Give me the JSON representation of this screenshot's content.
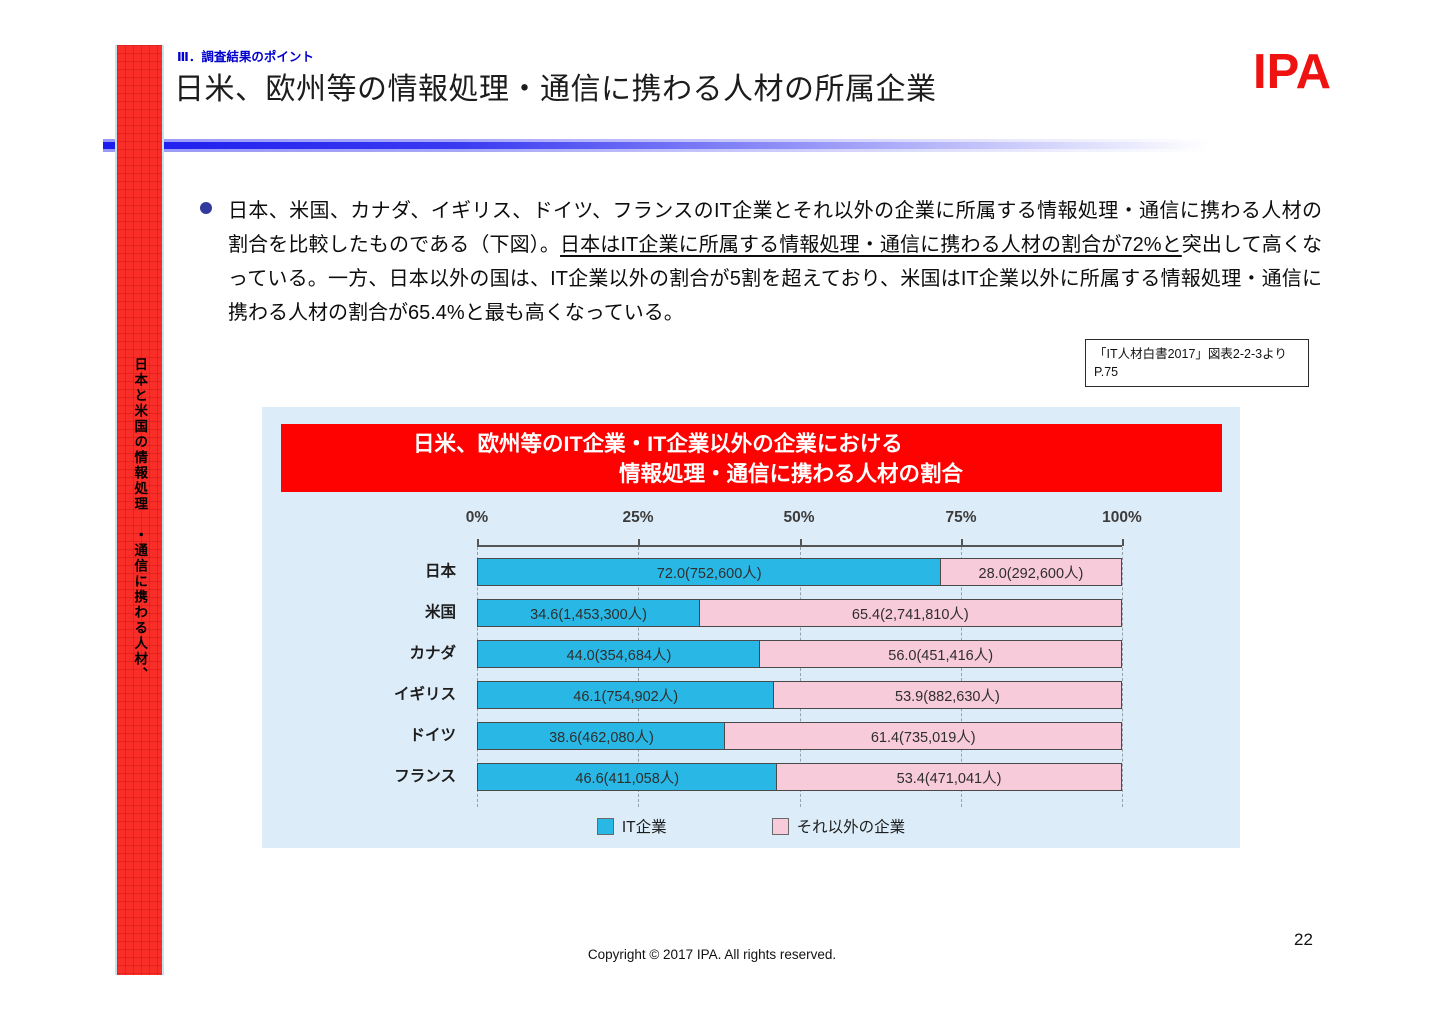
{
  "header": {
    "eyebrow": "Ⅲ．調査結果のポイント",
    "title": "日米、欧州等の情報処理・通信に携わる人材の所属企業",
    "logo_text": "IPA"
  },
  "sidebar": {
    "vertical_text": "日本と米国の情報処理　・通信に携わる人材、"
  },
  "body": {
    "paragraph": {
      "part1": "日本、米国、カナダ、イギリス、ドイツ、フランスのIT企業とそれ以外の企業に所属する情報処理・通信に携わる人材の割合を比較したものである（下図）。",
      "underlined": "日本はIT企業に所属する情報処理・通信に携わる人材の割合が72%と",
      "part2": "突出して高くなっている。一方、日本以外の国は、IT企業以外の割合が5割を超えており、米国はIT企業以外に所属する情報処理・通信に携わる人材の割合が65.4%と最も高くなっている。"
    },
    "source_note": {
      "line1": "「IT人材白書2017」図表2-2-3より",
      "line2": "P.75"
    }
  },
  "chart": {
    "title_line1": "日米、欧州等のIT企業・IT企業以外の企業における",
    "title_line2": "情報処理・通信に携わる人材の割合",
    "legend": [
      {
        "label": "IT企業",
        "color": "#29b8e6"
      },
      {
        "label": "それ以外の企業",
        "color": "#f8cbda"
      }
    ]
  },
  "chart_data": {
    "type": "bar",
    "orientation": "horizontal-stacked",
    "title": "日米、欧州等のIT企業・IT企業以外の企業における情報処理・通信に携わる人材の割合",
    "xlim": [
      0,
      100
    ],
    "x_ticks": [
      "0%",
      "25%",
      "50%",
      "75%",
      "100%"
    ],
    "grid": "dashed-vertical",
    "legend_position": "bottom",
    "series_names": [
      "IT企業",
      "それ以外の企業"
    ],
    "categories": [
      "日本",
      "米国",
      "カナダ",
      "イギリス",
      "ドイツ",
      "フランス"
    ],
    "rows": [
      {
        "country": "日本",
        "it_pct": 72.0,
        "it_label": "72.0(752,600人)",
        "non_pct": 28.0,
        "non_label": "28.0(292,600人)"
      },
      {
        "country": "米国",
        "it_pct": 34.6,
        "it_label": "34.6(1,453,300人)",
        "non_pct": 65.4,
        "non_label": "65.4(2,741,810人)"
      },
      {
        "country": "カナダ",
        "it_pct": 44.0,
        "it_label": "44.0(354,684人)",
        "non_pct": 56.0,
        "non_label": "56.0(451,416人)"
      },
      {
        "country": "イギリス",
        "it_pct": 46.1,
        "it_label": "46.1(754,902人)",
        "non_pct": 53.9,
        "non_label": "53.9(882,630人)"
      },
      {
        "country": "ドイツ",
        "it_pct": 38.6,
        "it_label": "38.6(462,080人)",
        "non_pct": 61.4,
        "non_label": "61.4(735,019人)"
      },
      {
        "country": "フランス",
        "it_pct": 46.6,
        "it_label": "46.6(411,058人)",
        "non_pct": 53.4,
        "non_label": "53.4(471,041人)"
      }
    ]
  },
  "footer": {
    "copyright": "Copyright © 2017 IPA. All rights reserved.",
    "page_number": "22"
  },
  "colors": {
    "banner_red": "#fe0202",
    "sidebar_red": "#fa2e28",
    "bar_blue": "#29b8e6",
    "bar_pink": "#f8cbda",
    "panel_bg": "#dcecf8",
    "eyebrow_blue": "#0000cf",
    "divider_blue": "#1c1cf0",
    "logo_red": "#ee1210",
    "bullet_navy": "#333a9e"
  }
}
